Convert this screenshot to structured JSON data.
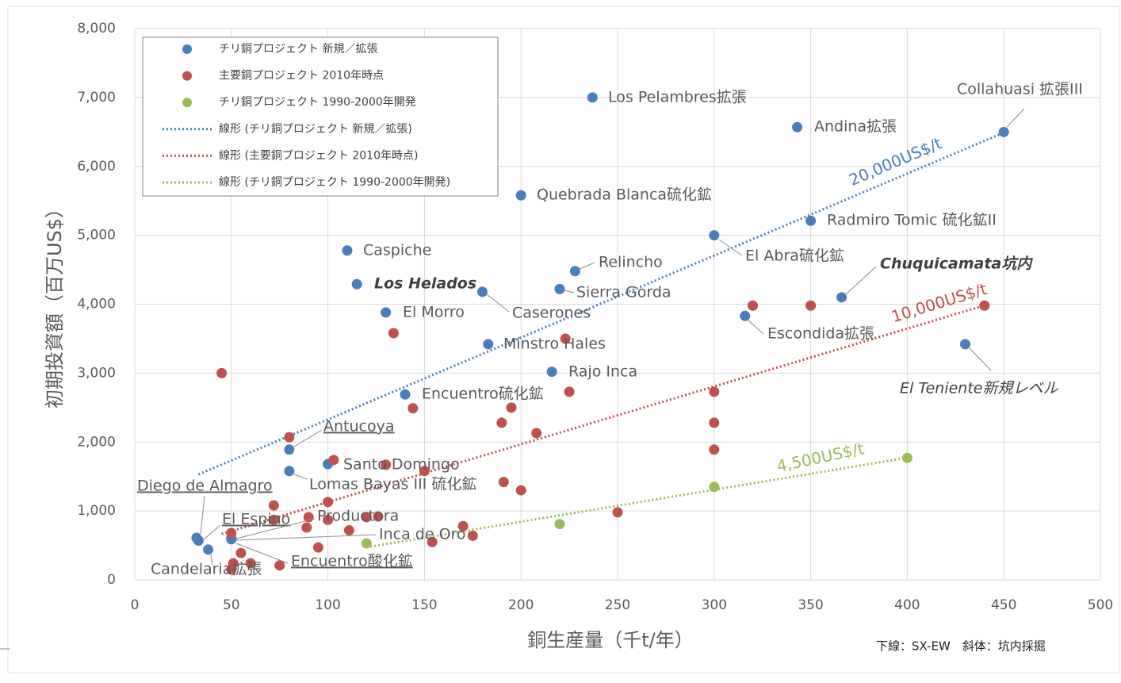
{
  "chart_data": {
    "type": "scatter",
    "xlabel": "銅生産量（千t/年）",
    "ylabel": "初期投資額（百万US$）",
    "note": "下線：SX-EW　斜体：坑内採掘",
    "xlim": [
      0,
      500
    ],
    "ylim": [
      0,
      8000
    ],
    "xticks": [
      0,
      50,
      100,
      150,
      200,
      250,
      300,
      350,
      400,
      450,
      500
    ],
    "yticks": [
      0,
      {
        "value": 1000,
        "label": "1,000"
      },
      {
        "value": 2000,
        "label": "2,000"
      },
      {
        "value": 3000,
        "label": "3,000"
      },
      {
        "value": 4000,
        "label": "4,000"
      },
      {
        "value": 5000,
        "label": "5,000"
      },
      {
        "value": 6000,
        "label": "6,000"
      },
      {
        "value": 7000,
        "label": "7,000"
      },
      {
        "value": 8000,
        "label": "8,000"
      }
    ],
    "grid": true,
    "legend": "upper left",
    "series": [
      {
        "name": "チリ銅プロジェクト 新規／拡張",
        "color": "#4a7ebb",
        "x": [
          237,
          343,
          450,
          200,
          350,
          300,
          110,
          228,
          115,
          180,
          220,
          366,
          130,
          316,
          183,
          430,
          216,
          140,
          80,
          100,
          80,
          32,
          33,
          38,
          50,
          50,
          50
        ],
        "values": [
          7000,
          6570,
          6500,
          5580,
          5210,
          5000,
          4780,
          4480,
          4290,
          4180,
          4220,
          4100,
          3880,
          3830,
          3420,
          3420,
          3020,
          2690,
          1890,
          1680,
          1580,
          610,
          570,
          440,
          610,
          600,
          590
        ],
        "labels": [
          "Los Pelambres拡張",
          "Andina拡張",
          "Collahuasi 拡張III",
          "Quebrada Blanca硫化鉱",
          "Radmiro Tomic 硫化鉱II",
          "El Abra硫化鉱",
          "Caspiche",
          "Relincho",
          "Los Helados",
          "Caserones",
          "Sierra Gorda",
          "Chuquicamata坑内",
          "El Morro",
          "Escondida拡張",
          "Minstro Hales",
          "El Teniente新規レベル",
          "Rajo Inca",
          "Encuentro硫化鉱",
          "Antucoya",
          "Santo Domingo",
          "Lomas Bayas III 硫化鉱",
          "Diego de Almagro",
          "El Espino",
          "Candelaria拡張",
          "Inca de Oro",
          "Encuentro酸化鉱",
          "Productora"
        ]
      },
      {
        "name": "主要銅プロジェクト 2010年時点",
        "color": "#c0504d",
        "x": [
          45,
          134,
          80,
          223,
          225,
          195,
          190,
          208,
          144,
          103,
          130,
          150,
          191,
          200,
          72,
          100,
          72,
          90,
          100,
          89,
          111,
          120,
          126,
          50,
          170,
          175,
          154,
          95,
          55,
          60,
          51,
          50,
          75,
          250,
          320,
          350,
          440,
          300,
          300,
          300
        ],
        "values": [
          3000,
          3580,
          2070,
          3500,
          2730,
          2500,
          2280,
          2130,
          2490,
          1740,
          1670,
          1580,
          1420,
          1300,
          1080,
          1130,
          870,
          910,
          870,
          760,
          720,
          910,
          920,
          680,
          780,
          640,
          550,
          470,
          390,
          240,
          240,
          150,
          210,
          980,
          3980,
          3980,
          3980,
          2730,
          2280,
          1890
        ]
      },
      {
        "name": "チリ銅プロジェクト 1990-2000年開発",
        "color": "#9bbb59",
        "x": [
          120,
          220,
          300,
          400
        ],
        "values": [
          530,
          810,
          1350,
          1770
        ]
      }
    ],
    "trendlines": [
      {
        "name": "線形 (チリ銅プロジェクト 新規／拡張)",
        "color": "#4a7ebb",
        "x": [
          33,
          450
        ],
        "values": [
          1530,
          6490
        ],
        "label": "20,000US$/t"
      },
      {
        "name": "線形 (主要銅プロジェクト 2010年時点)",
        "color": "#c0504d",
        "x": [
          45,
          440
        ],
        "values": [
          667,
          3982
        ],
        "label": "10,000US$/t"
      },
      {
        "name": "線形 (チリ銅プロジェクト 1990-2000年開発)",
        "color": "#9bbb59",
        "x": [
          120,
          400
        ],
        "values": [
          472,
          1772
        ],
        "label": "4,500US$/t"
      }
    ]
  }
}
